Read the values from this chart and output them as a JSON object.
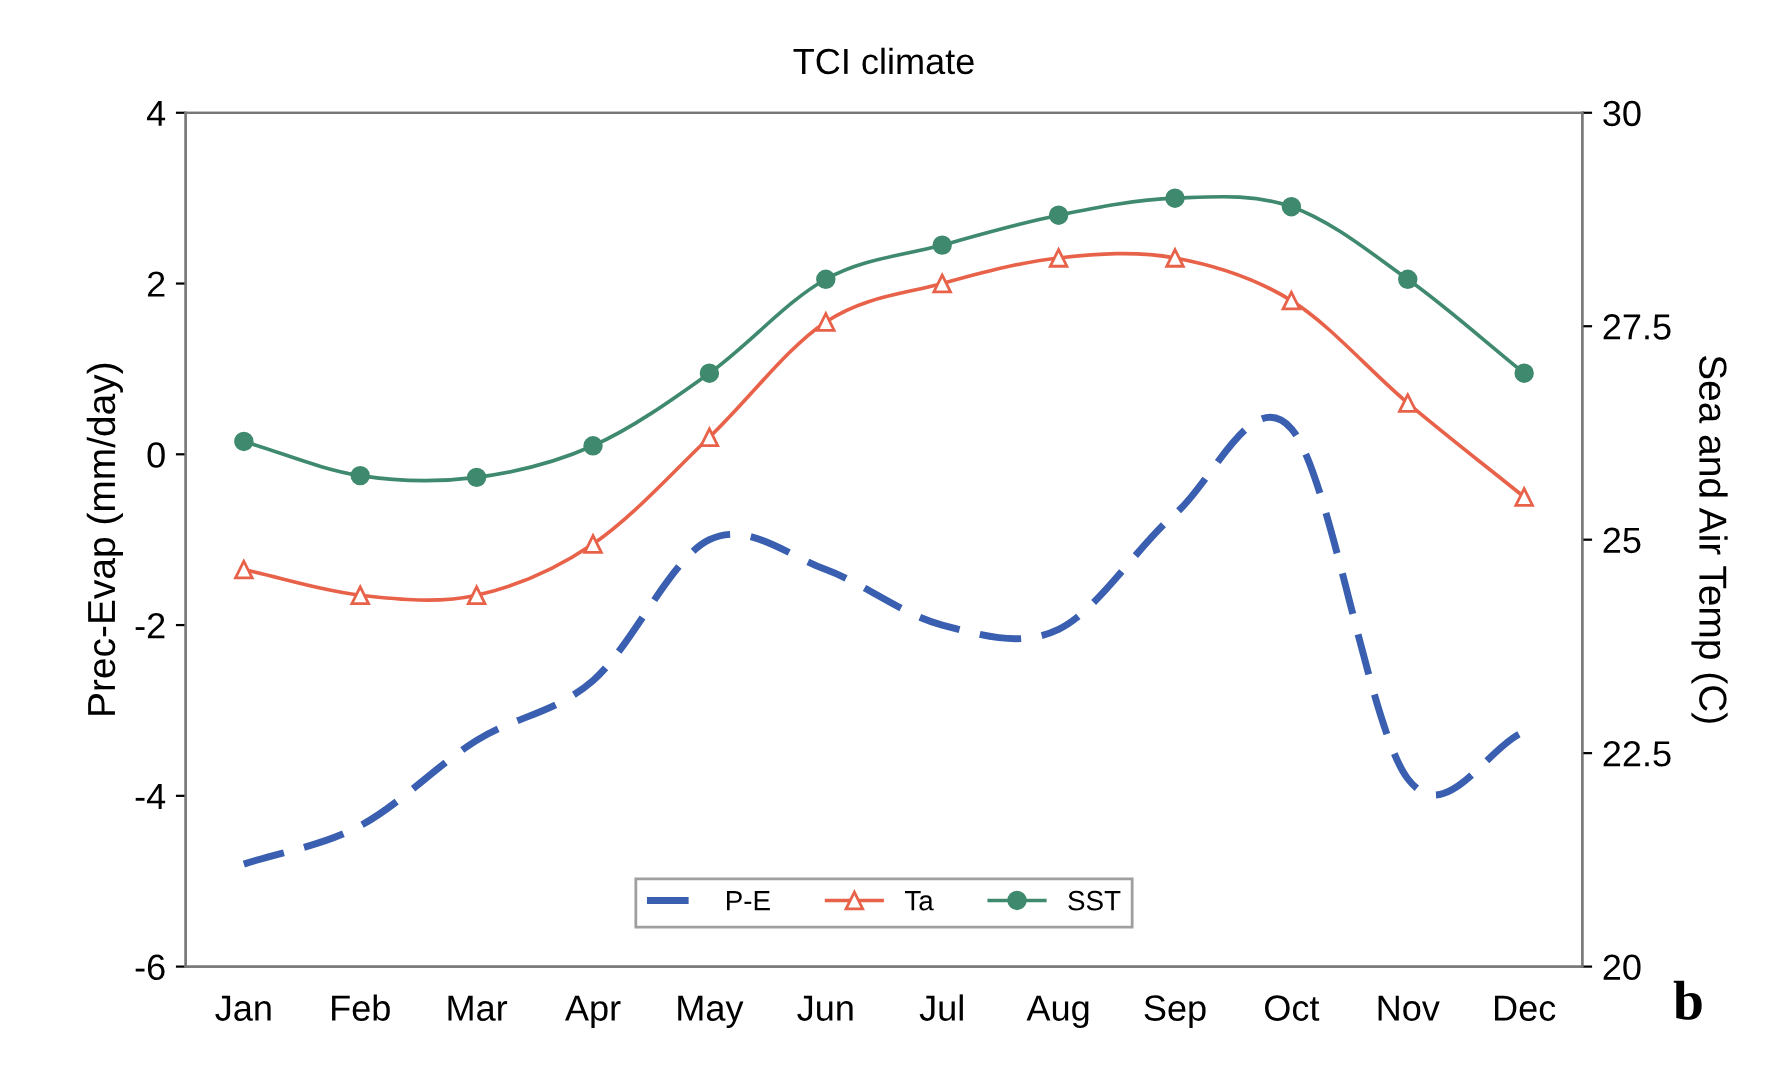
{
  "chart_data": {
    "type": "line",
    "title": "TCI climate",
    "ylabel": "Prec-Evap (mm/day)",
    "y2label": "Sea and Air Temp (C)",
    "categories": [
      "Jan",
      "Feb",
      "Mar",
      "Apr",
      "May",
      "Jun",
      "Jul",
      "Aug",
      "Sep",
      "Oct",
      "Nov",
      "Dec"
    ],
    "series": [
      {
        "name": "P-E",
        "color": "#3a5fb0",
        "line_style": "dashed",
        "marker": "none",
        "values": [
          -4.8,
          -4.35,
          -3.35,
          -2.65,
          -1.0,
          -1.35,
          -2.0,
          -2.05,
          -0.7,
          0.3,
          -3.8,
          -3.25
        ]
      },
      {
        "name": "Ta",
        "color": "#e8624a",
        "marker": "triangle",
        "axis": "y2",
        "values": [
          24.65,
          24.35,
          24.35,
          24.95,
          26.2,
          27.55,
          28.0,
          28.3,
          28.3,
          27.8,
          26.6,
          25.5
        ]
      },
      {
        "name": "SST",
        "color": "#3f8a6e",
        "marker": "circle",
        "axis": "y2",
        "values": [
          26.15,
          25.75,
          25.73,
          26.1,
          26.95,
          28.05,
          28.45,
          28.8,
          29.0,
          28.9,
          28.05,
          26.95
        ]
      }
    ],
    "ylim": [
      -6,
      4
    ],
    "yticks": [
      -6,
      -4,
      -2,
      0,
      2,
      4
    ],
    "y2lim": [
      20,
      30
    ],
    "y2ticks": [
      20,
      22.5,
      25,
      27.5,
      30
    ],
    "legend": "bottom",
    "grid": false,
    "annotations": [
      "b"
    ]
  }
}
